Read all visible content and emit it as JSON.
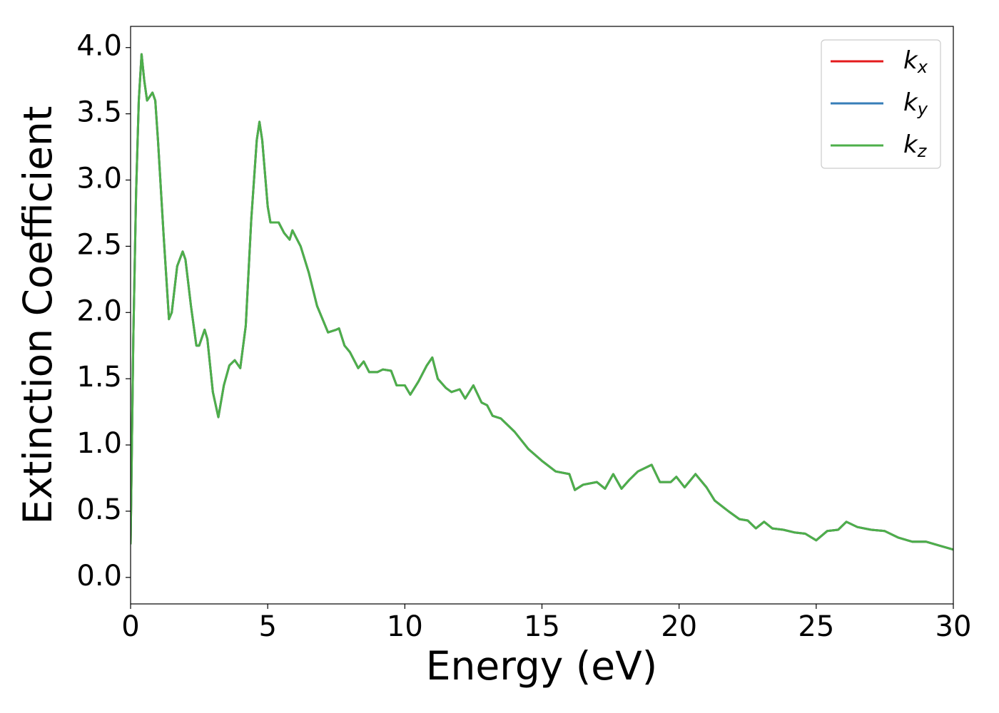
{
  "chart_data": {
    "type": "line",
    "xlabel": "Energy (eV)",
    "ylabel": "Extinction Coefficient",
    "xlim": [
      0,
      30
    ],
    "ylim": [
      -0.2,
      4.16
    ],
    "xticks": [
      0,
      5,
      10,
      15,
      20,
      25,
      30
    ],
    "yticks": [
      {
        "value": 0,
        "label": "0.0"
      },
      {
        "value": 0.5,
        "label": "0.5"
      },
      {
        "value": 1,
        "label": "1.0"
      },
      {
        "value": 1.5,
        "label": "1.5"
      },
      {
        "value": 2,
        "label": "2.0"
      },
      {
        "value": 2.5,
        "label": "2.5"
      },
      {
        "value": 3,
        "label": "3.0"
      },
      {
        "value": 3.5,
        "label": "3.5"
      },
      {
        "value": 4,
        "label": "4.0"
      }
    ],
    "legend": "upper right",
    "x": [
      0,
      0.1,
      0.2,
      0.3,
      0.4,
      0.5,
      0.6,
      0.8,
      0.9,
      1.0,
      1.2,
      1.4,
      1.5,
      1.7,
      1.9,
      2.0,
      2.2,
      2.4,
      2.5,
      2.7,
      2.8,
      3.0,
      3.2,
      3.4,
      3.6,
      3.8,
      4.0,
      4.2,
      4.4,
      4.6,
      4.7,
      4.8,
      5.0,
      5.1,
      5.4,
      5.6,
      5.8,
      5.9,
      6.2,
      6.5,
      6.8,
      7.0,
      7.2,
      7.5,
      7.6,
      7.8,
      8.0,
      8.3,
      8.5,
      8.7,
      9.0,
      9.2,
      9.5,
      9.7,
      10.0,
      10.2,
      10.5,
      10.8,
      11.0,
      11.2,
      11.5,
      11.7,
      12.0,
      12.2,
      12.5,
      12.8,
      13.0,
      13.2,
      13.5,
      14.0,
      14.5,
      15.0,
      15.5,
      16.0,
      16.2,
      16.5,
      17.0,
      17.3,
      17.6,
      17.9,
      18.2,
      18.5,
      19.0,
      19.3,
      19.7,
      19.9,
      20.2,
      20.6,
      21.0,
      21.3,
      21.8,
      22.2,
      22.5,
      22.8,
      23.1,
      23.4,
      23.8,
      24.2,
      24.6,
      25.0,
      25.4,
      25.8,
      26.1,
      26.5,
      27.0,
      27.5,
      28.0,
      28.5,
      29.0,
      29.5,
      30.0
    ],
    "series": [
      {
        "name": "kx",
        "color": "#e41a1c",
        "values": [
          0.25,
          1.8,
          2.9,
          3.6,
          3.95,
          3.75,
          3.6,
          3.66,
          3.6,
          3.3,
          2.6,
          1.95,
          2.0,
          2.35,
          2.46,
          2.4,
          2.05,
          1.75,
          1.75,
          1.87,
          1.8,
          1.4,
          1.21,
          1.45,
          1.6,
          1.64,
          1.58,
          1.9,
          2.7,
          3.3,
          3.44,
          3.3,
          2.8,
          2.68,
          2.68,
          2.6,
          2.55,
          2.62,
          2.5,
          2.3,
          2.05,
          1.95,
          1.85,
          1.87,
          1.88,
          1.75,
          1.7,
          1.58,
          1.63,
          1.55,
          1.55,
          1.57,
          1.56,
          1.45,
          1.45,
          1.38,
          1.48,
          1.6,
          1.66,
          1.5,
          1.43,
          1.4,
          1.42,
          1.35,
          1.45,
          1.32,
          1.3,
          1.22,
          1.2,
          1.1,
          0.97,
          0.88,
          0.8,
          0.78,
          0.66,
          0.7,
          0.72,
          0.67,
          0.78,
          0.67,
          0.74,
          0.8,
          0.85,
          0.72,
          0.72,
          0.76,
          0.68,
          0.78,
          0.68,
          0.58,
          0.5,
          0.44,
          0.43,
          0.37,
          0.42,
          0.37,
          0.36,
          0.34,
          0.33,
          0.28,
          0.35,
          0.36,
          0.42,
          0.38,
          0.36,
          0.35,
          0.3,
          0.27,
          0.27,
          0.24,
          0.21
        ]
      },
      {
        "name": "ky",
        "color": "#377eb8",
        "values": [
          0.25,
          1.8,
          2.9,
          3.6,
          3.95,
          3.75,
          3.6,
          3.66,
          3.6,
          3.3,
          2.6,
          1.95,
          2.0,
          2.35,
          2.46,
          2.4,
          2.05,
          1.75,
          1.75,
          1.87,
          1.8,
          1.4,
          1.21,
          1.45,
          1.6,
          1.64,
          1.58,
          1.9,
          2.7,
          3.3,
          3.44,
          3.3,
          2.8,
          2.68,
          2.68,
          2.6,
          2.55,
          2.62,
          2.5,
          2.3,
          2.05,
          1.95,
          1.85,
          1.87,
          1.88,
          1.75,
          1.7,
          1.58,
          1.63,
          1.55,
          1.55,
          1.57,
          1.56,
          1.45,
          1.45,
          1.38,
          1.48,
          1.6,
          1.66,
          1.5,
          1.43,
          1.4,
          1.42,
          1.35,
          1.45,
          1.32,
          1.3,
          1.22,
          1.2,
          1.1,
          0.97,
          0.88,
          0.8,
          0.78,
          0.66,
          0.7,
          0.72,
          0.67,
          0.78,
          0.67,
          0.74,
          0.8,
          0.85,
          0.72,
          0.72,
          0.76,
          0.68,
          0.78,
          0.68,
          0.58,
          0.5,
          0.44,
          0.43,
          0.37,
          0.42,
          0.37,
          0.36,
          0.34,
          0.33,
          0.28,
          0.35,
          0.36,
          0.42,
          0.38,
          0.36,
          0.35,
          0.3,
          0.27,
          0.27,
          0.24,
          0.21
        ]
      },
      {
        "name": "kz",
        "color": "#4daf4a",
        "values": [
          0.25,
          1.8,
          2.9,
          3.6,
          3.95,
          3.75,
          3.6,
          3.66,
          3.6,
          3.3,
          2.6,
          1.95,
          2.0,
          2.35,
          2.46,
          2.4,
          2.05,
          1.75,
          1.75,
          1.87,
          1.8,
          1.4,
          1.21,
          1.45,
          1.6,
          1.64,
          1.58,
          1.9,
          2.7,
          3.3,
          3.44,
          3.3,
          2.8,
          2.68,
          2.68,
          2.6,
          2.55,
          2.62,
          2.5,
          2.3,
          2.05,
          1.95,
          1.85,
          1.87,
          1.88,
          1.75,
          1.7,
          1.58,
          1.63,
          1.55,
          1.55,
          1.57,
          1.56,
          1.45,
          1.45,
          1.38,
          1.48,
          1.6,
          1.66,
          1.5,
          1.43,
          1.4,
          1.42,
          1.35,
          1.45,
          1.32,
          1.3,
          1.22,
          1.2,
          1.1,
          0.97,
          0.88,
          0.8,
          0.78,
          0.66,
          0.7,
          0.72,
          0.67,
          0.78,
          0.67,
          0.74,
          0.8,
          0.85,
          0.72,
          0.72,
          0.76,
          0.68,
          0.78,
          0.68,
          0.58,
          0.5,
          0.44,
          0.43,
          0.37,
          0.42,
          0.37,
          0.36,
          0.34,
          0.33,
          0.28,
          0.35,
          0.36,
          0.42,
          0.38,
          0.36,
          0.35,
          0.3,
          0.27,
          0.27,
          0.24,
          0.21
        ]
      }
    ]
  }
}
